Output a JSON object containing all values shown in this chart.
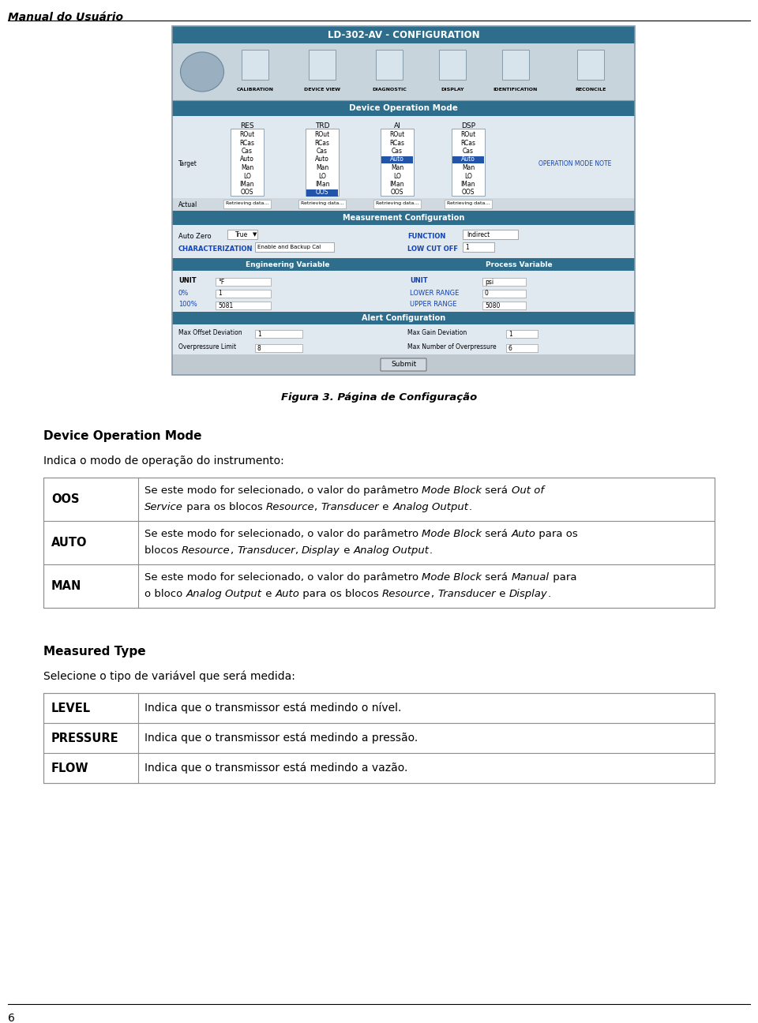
{
  "page_header": "Manual do Usuário",
  "page_number": "6",
  "figure_caption": "Figura 3. Página de Configuração",
  "screenshot_title": "LD-302-AV - CONFIGURATION",
  "section1_title": "Device Operation Mode",
  "section1_intro": "Indica o modo de operação do instrumento:",
  "section2_title": "Measured Type",
  "section2_intro": "Selecione o tipo de variável que será medida:",
  "table1_rows": [
    {
      "key": "OOS",
      "lines": [
        [
          {
            "t": "Se este modo for selecionado, o valor do parâmetro ",
            "i": false
          },
          {
            "t": "Mode Block",
            "i": true
          },
          {
            "t": " será ",
            "i": false
          },
          {
            "t": "Out of",
            "i": true
          }
        ],
        [
          {
            "t": "Service",
            "i": true
          },
          {
            "t": " para os blocos ",
            "i": false
          },
          {
            "t": "Resource",
            "i": true
          },
          {
            "t": ", ",
            "i": false
          },
          {
            "t": "Transducer",
            "i": true
          },
          {
            "t": " e ",
            "i": false
          },
          {
            "t": "Analog Output",
            "i": true
          },
          {
            "t": ".",
            "i": false
          }
        ]
      ]
    },
    {
      "key": "AUTO",
      "lines": [
        [
          {
            "t": "Se este modo for selecionado, o valor do parâmetro ",
            "i": false
          },
          {
            "t": "Mode Block",
            "i": true
          },
          {
            "t": " será ",
            "i": false
          },
          {
            "t": "Auto",
            "i": true
          },
          {
            "t": " para os",
            "i": false
          }
        ],
        [
          {
            "t": "blocos ",
            "i": false
          },
          {
            "t": "Resource",
            "i": true
          },
          {
            "t": ", ",
            "i": false
          },
          {
            "t": "Transducer",
            "i": true
          },
          {
            "t": ", ",
            "i": false
          },
          {
            "t": "Display",
            "i": true
          },
          {
            "t": " e ",
            "i": false
          },
          {
            "t": "Analog Output",
            "i": true
          },
          {
            "t": ".",
            "i": false
          }
        ]
      ]
    },
    {
      "key": "MAN",
      "lines": [
        [
          {
            "t": "Se este modo for selecionado, o valor do parâmetro ",
            "i": false
          },
          {
            "t": "Mode Block",
            "i": true
          },
          {
            "t": " será ",
            "i": false
          },
          {
            "t": "Manual",
            "i": true
          },
          {
            "t": " para",
            "i": false
          }
        ],
        [
          {
            "t": "o bloco ",
            "i": false
          },
          {
            "t": "Analog Output",
            "i": true
          },
          {
            "t": " e ",
            "i": false
          },
          {
            "t": "Auto",
            "i": true
          },
          {
            "t": " para os blocos ",
            "i": false
          },
          {
            "t": "Resource",
            "i": true
          },
          {
            "t": ", ",
            "i": false
          },
          {
            "t": "Transducer",
            "i": true
          },
          {
            "t": " e ",
            "i": false
          },
          {
            "t": "Display",
            "i": true
          },
          {
            "t": ".",
            "i": false
          }
        ]
      ]
    }
  ],
  "table2_rows": [
    {
      "key": "LEVEL",
      "value": "Indica que o transmissor está medindo o nível."
    },
    {
      "key": "PRESSURE",
      "value": "Indica que o transmissor está medindo a pressão."
    },
    {
      "key": "FLOW",
      "value": "Indica que o transmissor está medindo a vazão."
    }
  ],
  "bg_color": "#ffffff",
  "screenshot_header_bg": "#2e6e8c",
  "screenshot_header_text": "#ffffff",
  "screenshot_bg": "#c0c8d0",
  "screenshot_inner_bg": "#e0e8f0",
  "tbl_border": "#909090"
}
